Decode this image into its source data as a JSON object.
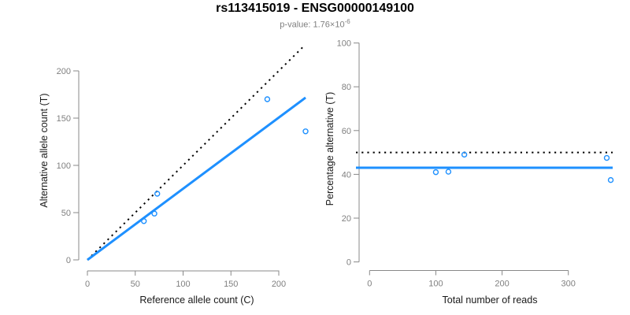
{
  "header": {
    "title": "rs113415019 - ENSG00000149100",
    "subtitle_prefix": "p-value: 1.76×10",
    "subtitle_exponent": "-6"
  },
  "colors": {
    "accent_blue": "#1E90FF",
    "axis_gray": "#888888",
    "tick_label_gray": "#808080",
    "label_black": "#1a1a1a",
    "subtitle_gray": "#7f7f7f",
    "background": "#ffffff"
  },
  "chart_data": [
    {
      "type": "scatter",
      "panel": "left",
      "xlabel": "Reference allele count (C)",
      "ylabel": "Alternative allele count (T)",
      "xlim": [
        0,
        230
      ],
      "ylim": [
        0,
        228
      ],
      "xticks": [
        0,
        50,
        100,
        150,
        200
      ],
      "yticks": [
        0,
        50,
        100,
        150,
        200
      ],
      "grid": false,
      "legend": "none",
      "points": [
        [
          59,
          41
        ],
        [
          70,
          49
        ],
        [
          73,
          70
        ],
        [
          188,
          170
        ],
        [
          228,
          136
        ]
      ],
      "lines": [
        {
          "name": "expected-1to1-line",
          "style": "dotted",
          "color": "#000000",
          "slope": 1,
          "intercept": 0,
          "x_range": [
            0,
            225.5
          ]
        },
        {
          "name": "fitted-line",
          "style": "solid",
          "color": "#1E90FF",
          "slope": 0.753,
          "intercept": 0,
          "x_range": [
            0,
            228
          ]
        }
      ]
    },
    {
      "type": "scatter",
      "panel": "right",
      "xlabel": "Total number of reads",
      "ylabel": "Percentage alternative (T)",
      "xlim": [
        0,
        380
      ],
      "ylim": [
        0,
        100
      ],
      "xticks": [
        0,
        100,
        200,
        300
      ],
      "yticks": [
        0,
        20,
        40,
        60,
        80,
        100
      ],
      "grid": false,
      "legend": "none",
      "points": [
        [
          100,
          41
        ],
        [
          119,
          41.2
        ],
        [
          143,
          49
        ],
        [
          358,
          47.5
        ],
        [
          364,
          37.4
        ]
      ],
      "lines": [
        {
          "name": "null-50pct-line",
          "style": "dotted",
          "color": "#000000",
          "y": 50
        },
        {
          "name": "fitted-mean-line",
          "style": "solid",
          "color": "#1E90FF",
          "y": 43
        }
      ]
    }
  ]
}
